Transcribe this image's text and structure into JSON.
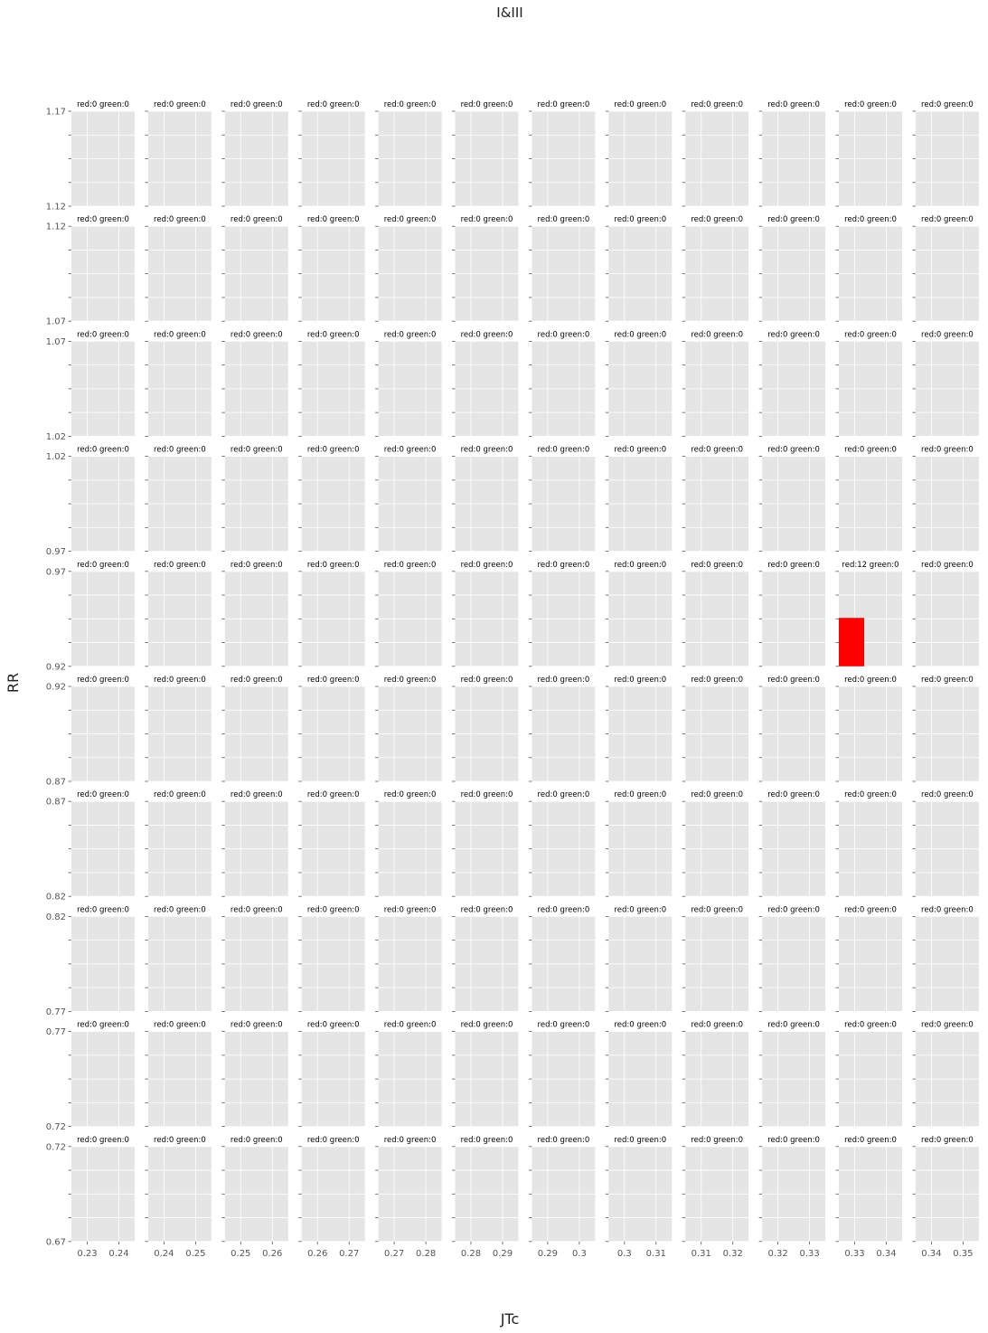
{
  "chart_data": {
    "type": "bar",
    "title": "I&III",
    "xlabel": "JTc",
    "ylabel": "RR",
    "grid": true,
    "style": "ggplot",
    "colors": {
      "panel_bg": "#E5E5E5",
      "grid": "#FFFFFF",
      "red": "#FF0000",
      "green": "#008000",
      "tick": "#555555"
    },
    "rows": [
      {
        "ylim": [
          1.12,
          1.17
        ],
        "ytick_labels": [
          "1.12",
          "1.17"
        ]
      },
      {
        "ylim": [
          1.07,
          1.12
        ],
        "ytick_labels": [
          "1.07",
          "1.12"
        ]
      },
      {
        "ylim": [
          1.02,
          1.07
        ],
        "ytick_labels": [
          "1.02",
          "1.07"
        ]
      },
      {
        "ylim": [
          0.97,
          1.02
        ],
        "ytick_labels": [
          "0.97",
          "1.02"
        ]
      },
      {
        "ylim": [
          0.92,
          0.97
        ],
        "ytick_labels": [
          "0.92",
          "0.97"
        ]
      },
      {
        "ylim": [
          0.87,
          0.92
        ],
        "ytick_labels": [
          "0.87",
          "0.92"
        ]
      },
      {
        "ylim": [
          0.82,
          0.87
        ],
        "ytick_labels": [
          "0.82",
          "0.87"
        ]
      },
      {
        "ylim": [
          0.77,
          0.82
        ],
        "ytick_labels": [
          "0.77",
          "0.82"
        ]
      },
      {
        "ylim": [
          0.72,
          0.77
        ],
        "ytick_labels": [
          "0.72",
          "0.77"
        ]
      },
      {
        "ylim": [
          0.67,
          0.72
        ],
        "ytick_labels": [
          "0.67",
          "0.72"
        ]
      }
    ],
    "columns": [
      {
        "xlim": [
          0.225,
          0.245
        ],
        "xtick_labels": [
          "0.23",
          "0.24"
        ]
      },
      {
        "xlim": [
          0.235,
          0.255
        ],
        "xtick_labels": [
          "0.24",
          "0.25"
        ]
      },
      {
        "xlim": [
          0.245,
          0.265
        ],
        "xtick_labels": [
          "0.25",
          "0.26"
        ]
      },
      {
        "xlim": [
          0.255,
          0.275
        ],
        "xtick_labels": [
          "0.26",
          "0.27"
        ]
      },
      {
        "xlim": [
          0.265,
          0.285
        ],
        "xtick_labels": [
          "0.27",
          "0.28"
        ]
      },
      {
        "xlim": [
          0.275,
          0.295
        ],
        "xtick_labels": [
          "0.28",
          "0.29"
        ]
      },
      {
        "xlim": [
          0.285,
          0.305
        ],
        "xtick_labels": [
          "0.29",
          "0.3"
        ]
      },
      {
        "xlim": [
          0.295,
          0.315
        ],
        "xtick_labels": [
          "0.3",
          "0.31"
        ]
      },
      {
        "xlim": [
          0.305,
          0.325
        ],
        "xtick_labels": [
          "0.31",
          "0.32"
        ]
      },
      {
        "xlim": [
          0.315,
          0.335
        ],
        "xtick_labels": [
          "0.32",
          "0.33"
        ]
      },
      {
        "xlim": [
          0.325,
          0.345
        ],
        "xtick_labels": [
          "0.33",
          "0.34"
        ]
      },
      {
        "xlim": [
          0.335,
          0.355
        ],
        "xtick_labels": [
          "0.34",
          "0.35"
        ]
      }
    ],
    "panel_title_template": "red:{red} green:{green}",
    "default_counts": {
      "red": 0,
      "green": 0
    },
    "nonzero_panels": [
      {
        "row": 4,
        "col": 10,
        "red": 12,
        "green": 0,
        "bars": [
          {
            "color": "red",
            "x0": 0.325,
            "x1": 0.333,
            "y0": 0.92,
            "y1": 0.9455
          }
        ]
      }
    ]
  }
}
